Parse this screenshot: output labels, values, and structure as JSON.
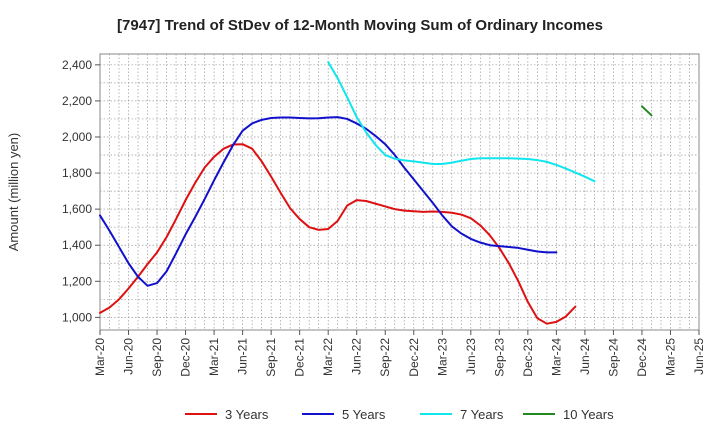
{
  "chart_data": {
    "type": "line",
    "title": "[7947]  Trend of StDev of 12-Month Moving Sum of Ordinary Incomes",
    "xlabel": "",
    "ylabel": "Amount (million yen)",
    "ylim": [
      930,
      2460
    ],
    "yticks": [
      1000,
      1200,
      1400,
      1600,
      1800,
      2000,
      2200,
      2400
    ],
    "ytick_labels": [
      "1,000",
      "1,200",
      "1,400",
      "1,600",
      "1,800",
      "2,000",
      "2,200",
      "2,400"
    ],
    "xtick_labels": [
      "Mar-20",
      "Jun-20",
      "Sep-20",
      "Dec-20",
      "Mar-21",
      "Jun-21",
      "Sep-21",
      "Dec-21",
      "Mar-22",
      "Jun-22",
      "Sep-22",
      "Dec-22",
      "Mar-23",
      "Jun-23",
      "Sep-23",
      "Dec-23",
      "Mar-24",
      "Jun-24",
      "Sep-24",
      "Dec-24",
      "Mar-25",
      "Jun-25"
    ],
    "grid": true,
    "legend_position": "bottom",
    "series": [
      {
        "name": "3 Years",
        "color": "#dd1111",
        "start_index": 0,
        "values": [
          1025,
          1055,
          1100,
          1160,
          1225,
          1295,
          1360,
          1445,
          1545,
          1650,
          1745,
          1830,
          1890,
          1935,
          1958,
          1960,
          1935,
          1865,
          1780,
          1690,
          1605,
          1545,
          1500,
          1485,
          1490,
          1535,
          1620,
          1650,
          1645,
          1630,
          1615,
          1600,
          1592,
          1588,
          1585,
          1587,
          1585,
          1580,
          1570,
          1550,
          1510,
          1455,
          1385,
          1300,
          1200,
          1085,
          995,
          965,
          975,
          1005,
          1060
        ]
      },
      {
        "name": "5 Years",
        "color": "#1111cc",
        "start_index": 0,
        "values": [
          1565,
          1480,
          1390,
          1300,
          1225,
          1175,
          1190,
          1255,
          1355,
          1460,
          1555,
          1655,
          1760,
          1860,
          1955,
          2035,
          2075,
          2095,
          2105,
          2108,
          2108,
          2105,
          2103,
          2104,
          2108,
          2110,
          2100,
          2075,
          2045,
          2005,
          1960,
          1900,
          1830,
          1765,
          1700,
          1635,
          1565,
          1505,
          1465,
          1435,
          1415,
          1400,
          1395,
          1390,
          1385,
          1375,
          1365,
          1360,
          1360
        ]
      },
      {
        "name": "7 Years",
        "color": "#11e5ee",
        "start_index": 24,
        "values": [
          2415,
          2325,
          2220,
          2110,
          2025,
          1955,
          1900,
          1880,
          1870,
          1865,
          1858,
          1850,
          1850,
          1858,
          1868,
          1878,
          1882,
          1882,
          1882,
          1882,
          1880,
          1878,
          1872,
          1862,
          1845,
          1825,
          1803,
          1780,
          1755
        ]
      },
      {
        "name": "10 Years",
        "color": "#228822",
        "start_index": 57,
        "values": [
          2170,
          2120
        ]
      }
    ]
  }
}
